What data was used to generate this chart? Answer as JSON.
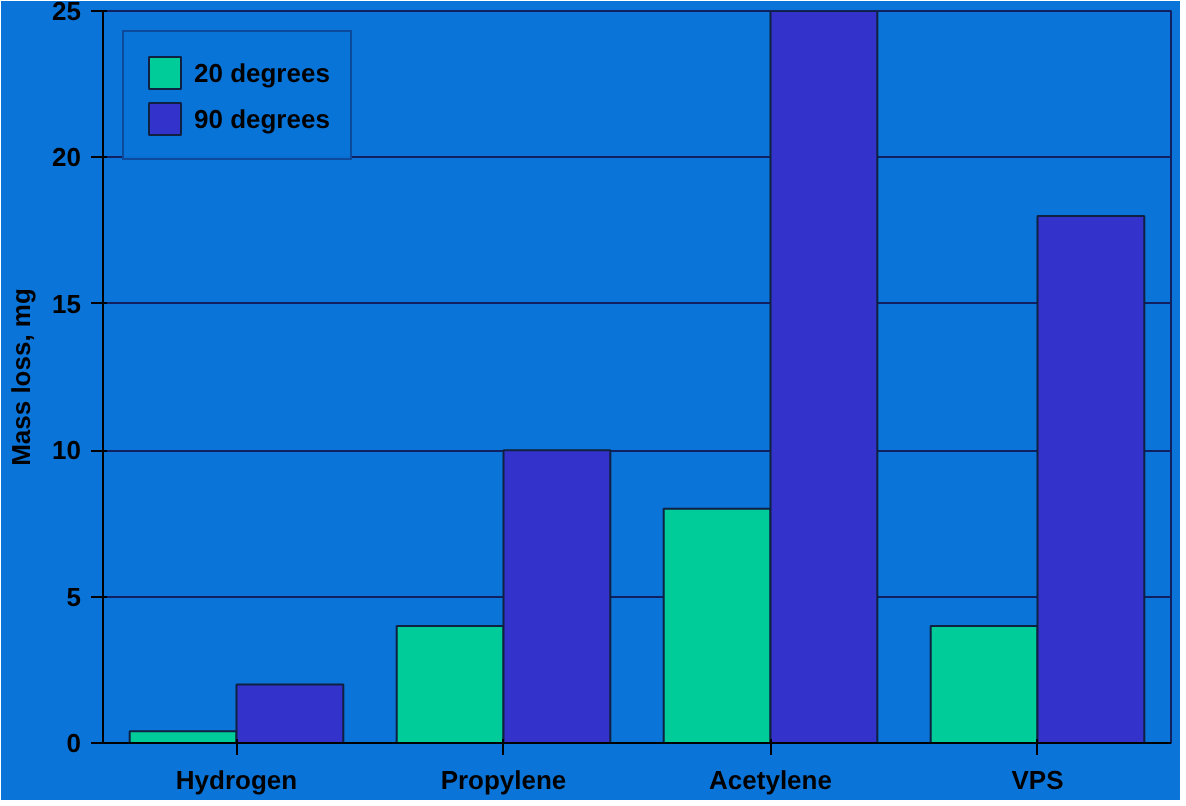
{
  "chart_data": {
    "type": "bar",
    "ylabel": "Mass loss, mg",
    "categories": [
      "Hydrogen",
      "Propylene",
      "Acetylene",
      "VPS"
    ],
    "series": [
      {
        "name": "20 degrees",
        "color": "#00cc99",
        "values": [
          0.4,
          4,
          8,
          4
        ]
      },
      {
        "name": "90 degrees",
        "color": "#3333cc",
        "values": [
          2,
          10,
          25,
          18
        ]
      }
    ],
    "ylim": [
      0,
      25
    ],
    "yticks": [
      0,
      5,
      10,
      15,
      20,
      25
    ],
    "grid": "y",
    "legend": "top left"
  }
}
